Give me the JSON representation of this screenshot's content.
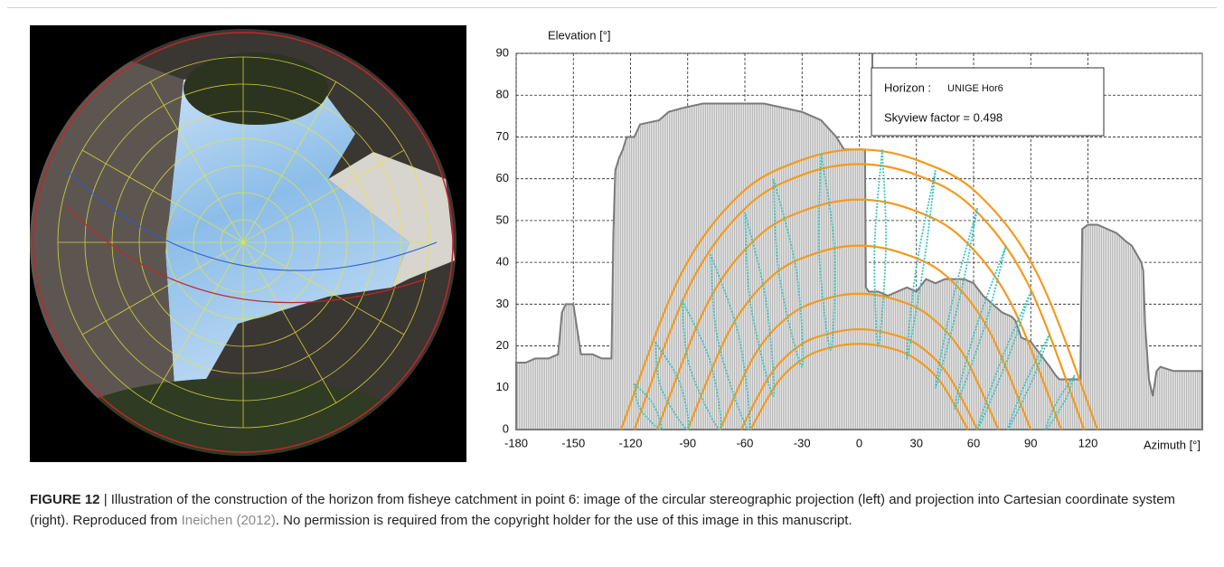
{
  "chart_data": {
    "type": "area",
    "y_label": "Elevation [°]",
    "x_label": "Azimuth [°]",
    "xlim": [
      -180,
      180
    ],
    "ylim": [
      0,
      90
    ],
    "xticks": [
      -180,
      -150,
      -120,
      -90,
      -60,
      -30,
      0,
      30,
      60,
      90,
      120
    ],
    "yticks": [
      0,
      10,
      20,
      30,
      40,
      50,
      60,
      70,
      80,
      90
    ],
    "grid": true,
    "annotation": {
      "label": "Horizon :",
      "name": "UNIGE Hor6",
      "text": "Skyview factor = 0.498"
    },
    "series": [
      {
        "type": "area",
        "color": "#7a7a7a",
        "x": [
          -180,
          -175,
          -170,
          -163,
          -158,
          -156,
          -154,
          -150,
          -148,
          -146,
          -140,
          -135,
          -131,
          -130,
          -129,
          -128,
          -126,
          -124,
          -122,
          -118,
          -115,
          -105,
          -100,
          -92,
          -82,
          -60,
          -50,
          -40,
          -30,
          -20,
          -12,
          -8,
          -5,
          0,
          3,
          3.5,
          5,
          10,
          15,
          20,
          25,
          30,
          35,
          40,
          45,
          50,
          55,
          60,
          65,
          70,
          75,
          80,
          82,
          85,
          90,
          95,
          100,
          103,
          105,
          110,
          115,
          116,
          117,
          120,
          125,
          130,
          135,
          140,
          143,
          148,
          149,
          150,
          152,
          154,
          156,
          158,
          165,
          180
        ],
        "values": [
          16,
          16,
          17,
          17,
          18,
          28,
          30,
          30,
          24,
          18,
          18,
          17,
          17,
          17,
          47,
          62,
          65,
          67,
          70,
          70,
          73,
          74,
          76,
          77,
          78,
          78,
          78,
          77,
          76,
          74,
          70,
          67,
          67,
          67,
          67,
          34,
          33,
          33,
          32,
          33,
          34,
          33,
          36,
          35,
          36,
          36,
          36,
          35,
          32,
          30,
          28,
          27,
          26,
          22,
          21,
          18,
          15,
          13,
          12,
          12,
          12,
          12,
          48,
          49,
          49,
          48,
          47,
          45,
          44,
          40,
          38,
          25,
          12,
          8,
          14,
          15,
          14,
          14
        ]
      },
      {
        "type": "line",
        "color": "#f39a1e",
        "x": [
          -125,
          -93.8,
          -62.5,
          -31.3,
          0,
          31.3,
          62.5,
          93.8,
          125
        ],
        "values": [
          0,
          36.9,
          56.3,
          64.3,
          67,
          64.3,
          56.3,
          36.9,
          0
        ]
      },
      {
        "type": "line",
        "color": "#f39a1e",
        "x": [
          -118,
          -88.5,
          -59,
          -29.5,
          0,
          29.5,
          59,
          88.5,
          118
        ],
        "values": [
          0,
          34.9,
          53.3,
          61,
          63.5,
          61,
          53.3,
          34.9,
          0
        ]
      },
      {
        "type": "line",
        "color": "#f39a1e",
        "x": [
          -106,
          -79.5,
          -53,
          -26.5,
          0,
          26.5,
          53,
          79.5,
          106
        ],
        "values": [
          0,
          30.3,
          46.2,
          52.8,
          55,
          52.8,
          46.2,
          30.3,
          0
        ]
      },
      {
        "type": "line",
        "color": "#f39a1e",
        "x": [
          -90,
          -67.5,
          -45,
          -22.5,
          0,
          22.5,
          45,
          67.5,
          90
        ],
        "values": [
          0,
          24.2,
          37,
          42.2,
          44,
          42.2,
          37,
          24.2,
          0
        ]
      },
      {
        "type": "line",
        "color": "#f39a1e",
        "x": [
          -73,
          -54.8,
          -36.5,
          -18.3,
          0,
          18.3,
          36.5,
          54.8,
          73
        ],
        "values": [
          0,
          17.9,
          27.3,
          31.2,
          32.5,
          31.2,
          27.3,
          17.9,
          0
        ]
      },
      {
        "type": "line",
        "color": "#f39a1e",
        "x": [
          -62,
          -46.5,
          -31,
          -15.5,
          0,
          15.5,
          31,
          46.5,
          62
        ],
        "values": [
          0,
          13.2,
          20.2,
          23,
          24,
          23,
          20.2,
          13.2,
          0
        ]
      },
      {
        "type": "line",
        "color": "#f39a1e",
        "x": [
          -57,
          -42.8,
          -28.5,
          -14.3,
          0,
          14.3,
          28.5,
          42.8,
          57
        ],
        "values": [
          0,
          11.3,
          17.2,
          19.7,
          20.5,
          19.7,
          17.2,
          11.3,
          0
        ]
      },
      {
        "type": "dotted",
        "color": "#3cc3c0",
        "x": [
          -118,
          -115,
          -104,
          -108,
          -118
        ],
        "values": [
          11,
          5,
          0,
          6,
          11
        ]
      },
      {
        "type": "dotted",
        "color": "#3cc3c0",
        "x": [
          -107,
          -104,
          -90,
          -94,
          -107
        ],
        "values": [
          21,
          10,
          0,
          11,
          21
        ]
      },
      {
        "type": "dotted",
        "color": "#3cc3c0",
        "x": [
          -93,
          -89,
          -73,
          -78,
          -93
        ],
        "values": [
          31,
          15,
          0,
          16,
          31
        ]
      },
      {
        "type": "dotted",
        "color": "#3cc3c0",
        "x": [
          -78,
          -74,
          -58,
          -63,
          -78
        ],
        "values": [
          42,
          21,
          0,
          22,
          42
        ]
      },
      {
        "type": "dotted",
        "color": "#3cc3c0",
        "x": [
          -60,
          -57,
          -45,
          -49,
          -60
        ],
        "values": [
          52,
          30,
          8,
          31,
          52
        ]
      },
      {
        "type": "dotted",
        "color": "#3cc3c0",
        "x": [
          -45,
          -42,
          -30,
          -33,
          -45
        ],
        "values": [
          60,
          37,
          15,
          38,
          60
        ]
      },
      {
        "type": "dotted",
        "color": "#3cc3c0",
        "x": [
          -20,
          -21,
          -15,
          -13,
          -20
        ],
        "values": [
          66,
          42,
          19,
          43,
          66
        ]
      },
      {
        "type": "dotted",
        "color": "#3cc3c0",
        "x": [
          12,
          8,
          10,
          14,
          12
        ],
        "values": [
          67,
          43,
          20,
          44,
          67
        ]
      },
      {
        "type": "dotted",
        "color": "#3cc3c0",
        "x": [
          40,
          30,
          25,
          34,
          40
        ],
        "values": [
          62,
          39,
          17,
          40,
          62
        ]
      },
      {
        "type": "dotted",
        "color": "#3cc3c0",
        "x": [
          62,
          49,
          40,
          53,
          62
        ],
        "values": [
          53,
          31,
          10,
          32,
          53
        ]
      },
      {
        "type": "dotted",
        "color": "#3cc3c0",
        "x": [
          77,
          61,
          50,
          66,
          77
        ],
        "values": [
          44,
          24,
          5,
          25,
          44
        ]
      },
      {
        "type": "dotted",
        "color": "#3cc3c0",
        "x": [
          90,
          74,
          62,
          78,
          90
        ],
        "values": [
          33,
          16,
          0,
          17,
          33
        ]
      },
      {
        "type": "dotted",
        "color": "#3cc3c0",
        "x": [
          100,
          87,
          78,
          91,
          100
        ],
        "values": [
          23,
          11,
          0,
          12,
          23
        ]
      },
      {
        "type": "dotted",
        "color": "#3cc3c0",
        "x": [
          113,
          103,
          98,
          108,
          113
        ],
        "values": [
          13,
          6,
          0,
          7,
          13
        ]
      }
    ]
  },
  "caption": {
    "label": "FIGURE 12",
    "text": "| Illustration of the construction of the horizon from fisheye catchment in point 6: image of the circular stereographic projection (left) and projection into Cartesian coordinate system (right). Reproduced from",
    "citation": "Ineichen (2012)",
    "text_end": ". No permission is required from the copyright holder for the use of this image in this manuscript."
  }
}
